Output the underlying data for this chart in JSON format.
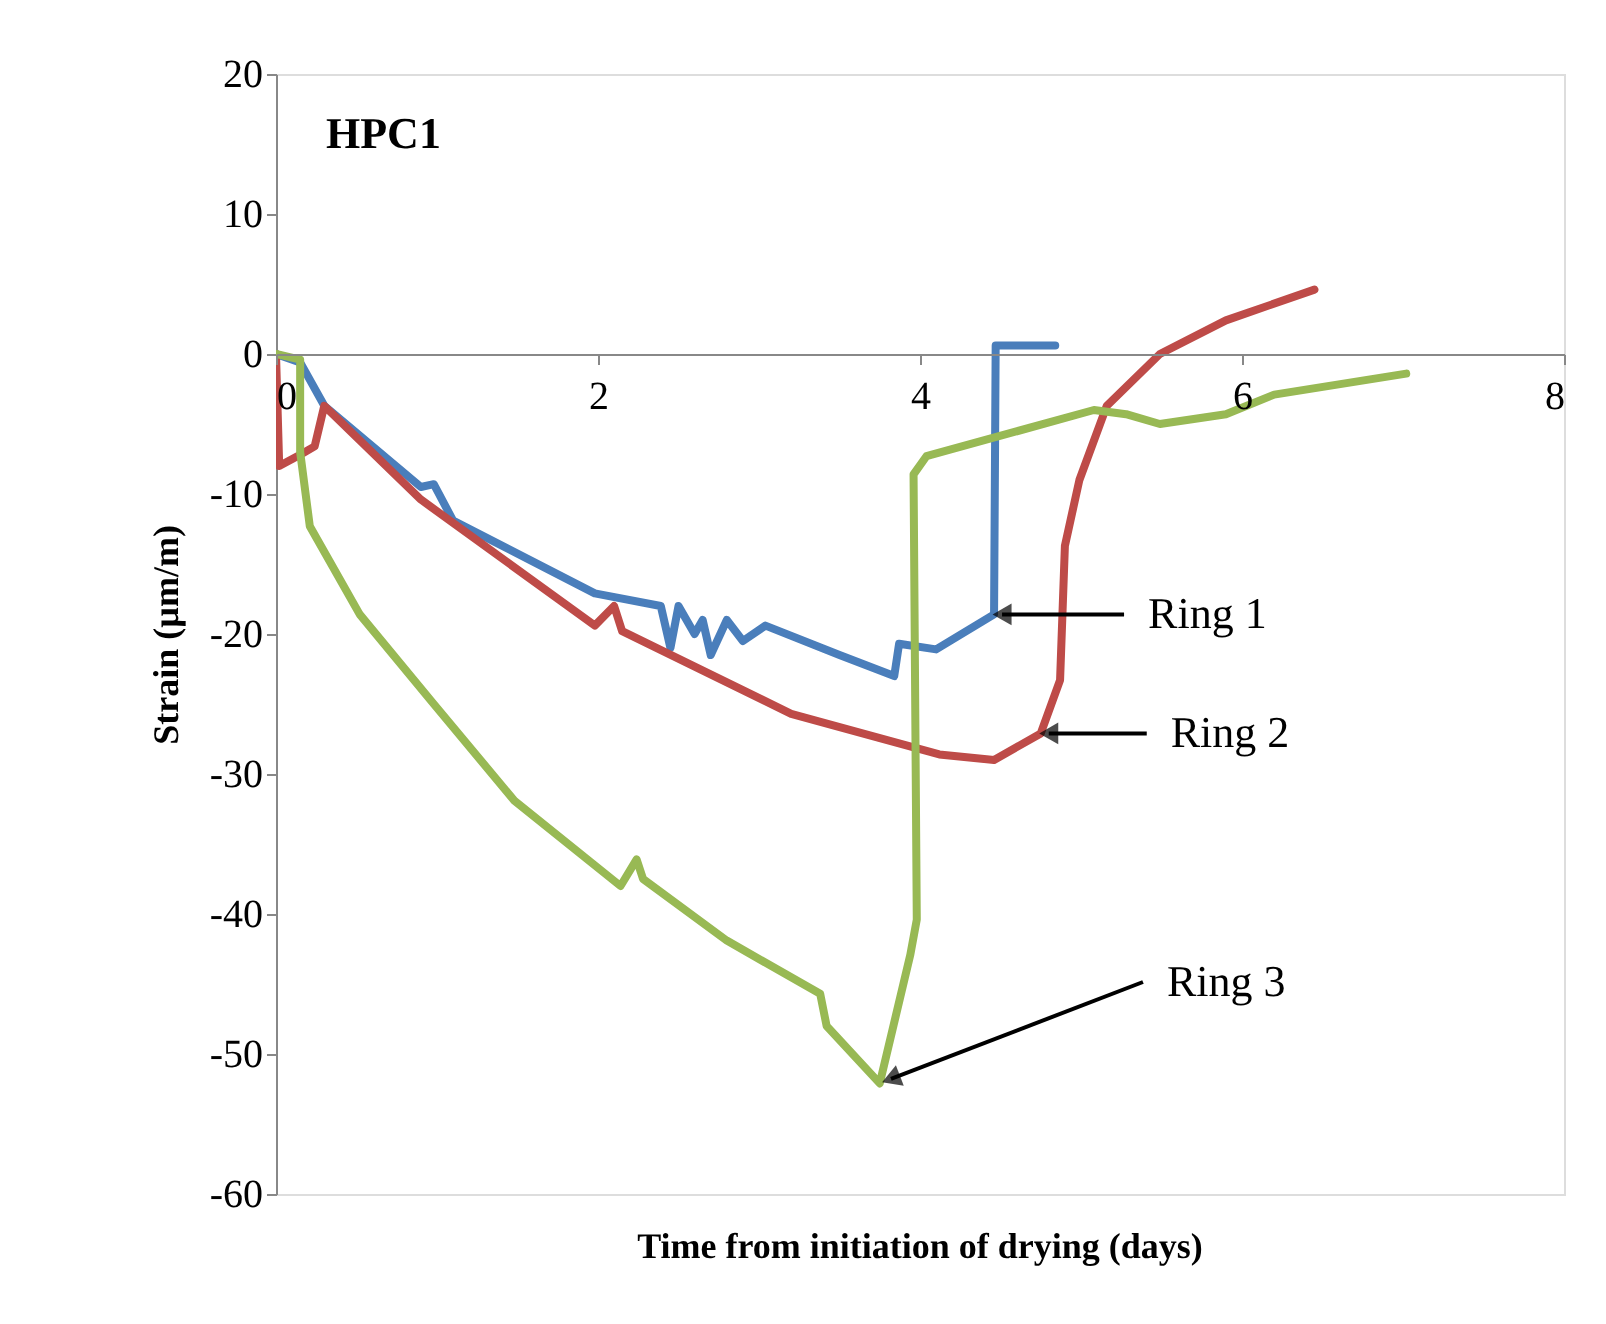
{
  "chart_data": {
    "type": "line",
    "title": "HPC1",
    "xlabel": "Time from initiation of drying  (days)",
    "ylabel": "Strain (µm/m)",
    "xlim": [
      0,
      8
    ],
    "xticks": [
      0,
      2,
      4,
      6,
      8
    ],
    "ylim": [
      -60,
      20
    ],
    "yticks": [
      -60,
      -50,
      -40,
      -30,
      -20,
      -10,
      0,
      10,
      20
    ],
    "grid": false,
    "legend": false,
    "marker": "none",
    "line_style": "solid",
    "series": [
      {
        "color": "#4a7ebb",
        "x": [
          0,
          0.15,
          0.3,
          0.9,
          0.98,
          1.1,
          1.98,
          2.39,
          2.45,
          2.5,
          2.6,
          2.65,
          2.7,
          2.8,
          2.9,
          3.04,
          3.5,
          3.84,
          3.87,
          4.1,
          4.46,
          4.47,
          4.6,
          4.84
        ],
        "values": [
          0,
          -0.6,
          -3.7,
          -9.5,
          -9.3,
          -11.9,
          -17.1,
          -18,
          -21,
          -18,
          -20,
          -19,
          -21.5,
          -19,
          -20.5,
          -19.4,
          -21.5,
          -23,
          -20.7,
          -21.1,
          -18.6,
          0.6,
          0.6,
          0.6
        ]
      },
      {
        "color": "#be4b48",
        "x": [
          0,
          0.02,
          0.15,
          0.24,
          0.3,
          0.9,
          1.98,
          2.1,
          2.15,
          3.2,
          4.12,
          4.46,
          4.75,
          4.87,
          4.9,
          4.99,
          5.16,
          5.49,
          5.9,
          6.45
        ],
        "values": [
          0,
          -8,
          -7.2,
          -6.6,
          -3.7,
          -10.4,
          -19.4,
          -18,
          -19.8,
          -25.7,
          -28.6,
          -29,
          -27.1,
          -23.3,
          -13.7,
          -9,
          -3.7,
          0,
          2.4,
          4.6
        ]
      },
      {
        "color": "#98b954",
        "x": [
          0,
          0.15,
          0.15,
          0.21,
          0.52,
          0.98,
          1.48,
          2.14,
          2.24,
          2.28,
          2.8,
          3.38,
          3.42,
          3.75,
          3.94,
          3.98,
          3.96,
          4.04,
          5.08,
          5.28,
          5.49,
          5.9,
          6.2,
          7.02
        ],
        "values": [
          0,
          -0.4,
          -7,
          -12.3,
          -18.6,
          -25,
          -31.9,
          -38,
          -36.1,
          -37.5,
          -41.9,
          -45.7,
          -48,
          -52.1,
          -42.9,
          -40.4,
          -8.6,
          -7.3,
          -4,
          -4.3,
          -5,
          -4.3,
          -2.9,
          -1.4
        ]
      }
    ],
    "annotations": [
      {
        "text": "Ring 1",
        "x": 4.46,
        "y": -18.6
      },
      {
        "text": "Ring 2",
        "x": 4.75,
        "y": -27.1
      },
      {
        "text": "Ring 3",
        "x": 3.77,
        "y": -52
      }
    ]
  }
}
